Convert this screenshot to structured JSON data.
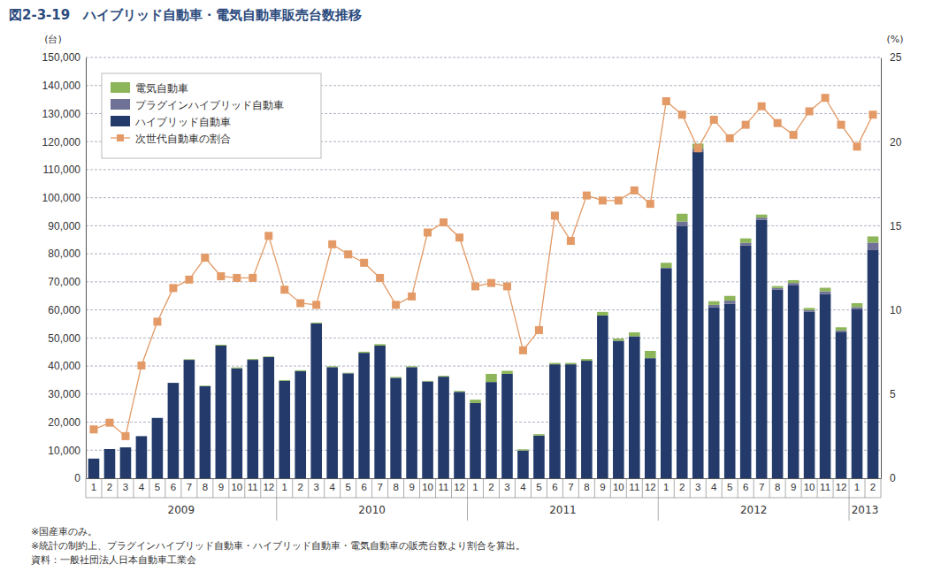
{
  "chart_data": {
    "type": "bar",
    "title": "図2-3-19　ハイブリッド自動車・電気自動車販売台数推移",
    "y_label": "(台)",
    "y2_label": "(%)",
    "stacked": true,
    "grid": true,
    "legend": "upper left",
    "categories": [
      "1",
      "2",
      "3",
      "4",
      "5",
      "6",
      "7",
      "8",
      "9",
      "10",
      "11",
      "12",
      "1",
      "2",
      "3",
      "4",
      "5",
      "6",
      "7",
      "8",
      "9",
      "10",
      "11",
      "12",
      "1",
      "2",
      "3",
      "4",
      "5",
      "6",
      "7",
      "8",
      "9",
      "10",
      "11",
      "12",
      "1",
      "2",
      "3",
      "4",
      "5",
      "6",
      "7",
      "8",
      "9",
      "10",
      "11",
      "12",
      "1",
      "2"
    ],
    "x_groups": [
      {
        "label": "2009",
        "size": 12
      },
      {
        "label": "2010",
        "size": 12
      },
      {
        "label": "2011",
        "size": 12
      },
      {
        "label": "2012",
        "size": 12
      },
      {
        "label": "2013",
        "size": 2
      }
    ],
    "ylim": [
      0,
      150000
    ],
    "yticks": [
      0,
      {
        "value": 10000,
        "label": "10,000"
      },
      {
        "value": 20000,
        "label": "20,000"
      },
      {
        "value": 30000,
        "label": "30,000"
      },
      {
        "value": 40000,
        "label": "40,000"
      },
      {
        "value": 50000,
        "label": "50,000"
      },
      {
        "value": 60000,
        "label": "60,000"
      },
      {
        "value": 70000,
        "label": "70,000"
      },
      {
        "value": 80000,
        "label": "80,000"
      },
      {
        "value": 90000,
        "label": "90,000"
      },
      {
        "value": 100000,
        "label": "100,000"
      },
      {
        "value": 110000,
        "label": "110,000"
      },
      {
        "value": 120000,
        "label": "120,000"
      },
      {
        "value": 130000,
        "label": "130,000"
      },
      {
        "value": 140000,
        "label": "140,000"
      },
      {
        "value": 150000,
        "label": "150,000"
      }
    ],
    "y2lim": [
      0,
      25
    ],
    "y2ticks": [
      0,
      5,
      10,
      15,
      20,
      25
    ],
    "series": [
      {
        "name": "ハイブリッド自動車",
        "type": "bar",
        "color": "#233a6a",
        "values": [
          7000,
          10400,
          11000,
          15000,
          21500,
          34000,
          42200,
          32800,
          47300,
          39200,
          42200,
          43200,
          34700,
          38200,
          55200,
          39600,
          37400,
          44700,
          47300,
          35800,
          39600,
          34500,
          36200,
          30800,
          26800,
          34300,
          37200,
          9900,
          15200,
          40600,
          40600,
          41900,
          58000,
          49000,
          50600,
          42800,
          74700,
          90000,
          116500,
          61000,
          62200,
          83000,
          92100,
          67300,
          68700,
          59300,
          65700,
          52000,
          60200,
          81500
        ]
      },
      {
        "name": "プラグインハイブリッド自動車",
        "type": "bar",
        "color": "#6f7197",
        "values": [
          0,
          0,
          0,
          0,
          0,
          0,
          0,
          0,
          0,
          0,
          0,
          0,
          0,
          0,
          0,
          0,
          0,
          0,
          0,
          0,
          0,
          0,
          0,
          0,
          0,
          0,
          0,
          0,
          0,
          0,
          0,
          0,
          0,
          0,
          0,
          0,
          300,
          1500,
          1000,
          800,
          1100,
          900,
          800,
          500,
          900,
          600,
          900,
          700,
          800,
          2500
        ]
      },
      {
        "name": "電気自動車",
        "type": "bar",
        "color": "#8db55a",
        "values": [
          0,
          0,
          0,
          0,
          0,
          0,
          200,
          200,
          300,
          300,
          300,
          200,
          300,
          300,
          300,
          300,
          200,
          400,
          500,
          300,
          300,
          200,
          300,
          300,
          1200,
          2900,
          1100,
          400,
          500,
          500,
          500,
          600,
          1300,
          800,
          1400,
          2600,
          1800,
          2800,
          1800,
          1300,
          1700,
          1600,
          1100,
          700,
          1000,
          800,
          1300,
          1100,
          1400,
          2200
        ]
      },
      {
        "name": "次世代自動車の割合",
        "type": "line",
        "axis": "y2",
        "color": "#e39a66",
        "marker": "square",
        "line_style": "solid",
        "values": [
          2.9,
          3.3,
          2.5,
          6.7,
          9.3,
          11.3,
          11.8,
          13.1,
          12.0,
          11.9,
          11.9,
          14.4,
          11.2,
          10.4,
          10.3,
          13.9,
          13.3,
          12.8,
          11.9,
          10.3,
          10.8,
          14.6,
          15.2,
          14.3,
          11.4,
          11.6,
          11.4,
          7.6,
          8.8,
          15.6,
          14.1,
          16.8,
          16.5,
          16.5,
          17.1,
          16.3,
          22.4,
          21.6,
          19.6,
          21.3,
          20.2,
          21.0,
          22.1,
          21.1,
          20.4,
          21.8,
          22.6,
          21.0,
          19.7,
          21.6
        ]
      }
    ],
    "notes": [
      "※国産車のみ。",
      "※統計の制約上、プラグインハイブリッド自動車・ハイブリッド自動車・電気自動車の販売台数より割合を算出。",
      "資料：一般社団法人日本自動車工業会"
    ]
  }
}
